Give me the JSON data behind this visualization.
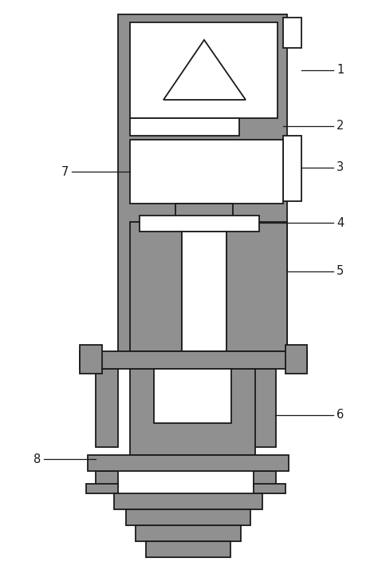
{
  "gray": "#909090",
  "white": "#ffffff",
  "line_color": "#1a1a1a",
  "bg_color": "#ffffff",
  "figsize": [
    4.74,
    7.24
  ],
  "dpi": 100,
  "label_fs": 10.5,
  "lw": 1.3,
  "lw_line": 0.9
}
